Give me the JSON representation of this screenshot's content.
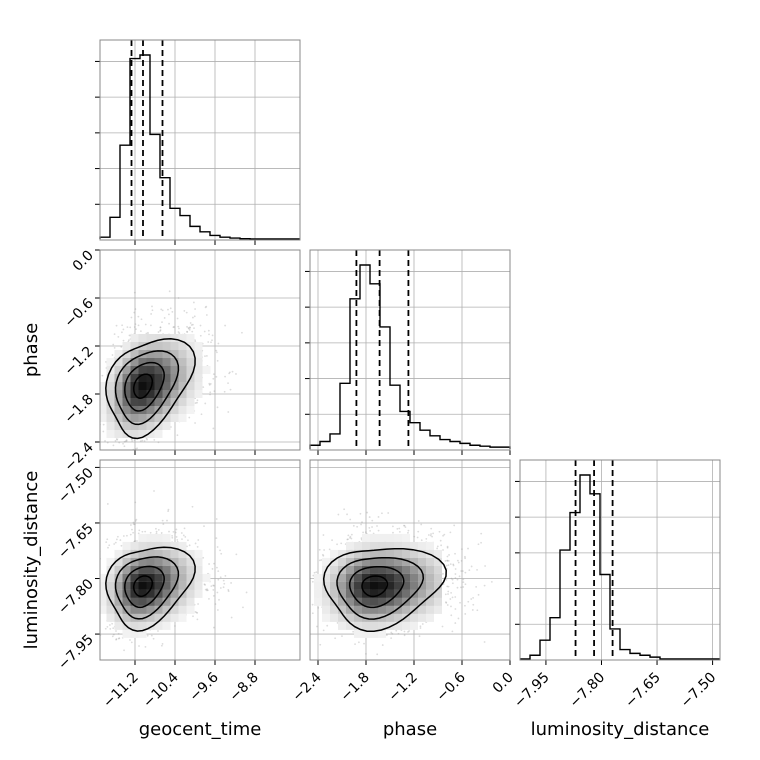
{
  "chart_data": {
    "type": "corner",
    "grid": true,
    "parameters": [
      {
        "name": "geocent_time",
        "xlabel": "geocent_time",
        "range": [
          -11.9,
          -7.9
        ],
        "ticks": [
          -11.2,
          -10.4,
          -9.6,
          -8.8
        ],
        "tick_labels": [
          "−11.2",
          "−10.4",
          "−9.6",
          "−8.8"
        ],
        "quantiles": [
          -11.27,
          -11.04,
          -10.65
        ],
        "histogram": {
          "bin_edges": [
            -11.9,
            -11.7,
            -11.5,
            -11.3,
            -11.1,
            -10.9,
            -10.7,
            -10.5,
            -10.3,
            -10.1,
            -9.9,
            -9.7,
            -9.5,
            -9.3,
            -9.1,
            -8.9,
            -8.7,
            -8.5,
            -8.3,
            -8.1,
            -7.9
          ],
          "counts": [
            0.01,
            0.12,
            0.52,
            1.0,
            1.02,
            0.58,
            0.34,
            0.17,
            0.13,
            0.07,
            0.04,
            0.02,
            0.01,
            0.005,
            0.002,
            0,
            0,
            0,
            0,
            0
          ]
        }
      },
      {
        "name": "phase",
        "xlabel": "phase",
        "ylabel": "phase",
        "range": [
          -2.5,
          0.0
        ],
        "ticks": [
          -2.4,
          -1.8,
          -1.2,
          -0.6,
          0.0
        ],
        "tick_labels": [
          "−2.4",
          "−1.8",
          "−1.2",
          "−0.6",
          "0.0"
        ],
        "quantiles": [
          -1.92,
          -1.63,
          -1.27
        ],
        "histogram": {
          "bin_edges": [
            -2.5,
            -2.375,
            -2.25,
            -2.125,
            -2.0,
            -1.875,
            -1.75,
            -1.625,
            -1.5,
            -1.375,
            -1.25,
            -1.125,
            -1.0,
            -0.875,
            -0.75,
            -0.625,
            -0.5,
            -0.375,
            -0.25,
            -0.125,
            0.0
          ],
          "counts": [
            0.02,
            0.04,
            0.08,
            0.35,
            0.8,
            0.98,
            0.88,
            0.65,
            0.34,
            0.2,
            0.14,
            0.1,
            0.07,
            0.05,
            0.04,
            0.03,
            0.02,
            0.015,
            0.01,
            0.01
          ]
        }
      },
      {
        "name": "luminosity_distance",
        "xlabel": "luminosity_distance",
        "ylabel": "luminosity_distance",
        "range": [
          -8.02,
          -7.48
        ],
        "ticks": [
          -7.95,
          -7.8,
          -7.65,
          -7.5
        ],
        "tick_labels": [
          "−7.95",
          "−7.80",
          "−7.65",
          "−7.50"
        ],
        "quantiles": [
          -7.87,
          -7.82,
          -7.77
        ],
        "histogram": {
          "bin_edges": [
            -8.02,
            -7.993,
            -7.966,
            -7.939,
            -7.912,
            -7.885,
            -7.858,
            -7.831,
            -7.804,
            -7.777,
            -7.75,
            -7.723,
            -7.696,
            -7.669,
            -7.642,
            -7.615,
            -7.588,
            -7.561,
            -7.534,
            -7.507,
            -7.48
          ],
          "counts": [
            0.0,
            0.02,
            0.1,
            0.22,
            0.58,
            0.78,
            0.98,
            0.88,
            0.45,
            0.16,
            0.05,
            0.03,
            0.02,
            0.01,
            0.0,
            0.0,
            0.0,
            0.0,
            0.0,
            0.0
          ]
        }
      }
    ],
    "pairs": [
      {
        "x": "geocent_time",
        "y": "phase",
        "mean": [
          -11.05,
          -1.7
        ],
        "sd": [
          0.35,
          0.3
        ],
        "corr": 0.3,
        "contour_levels_sigma": [
          0.5,
          1.0,
          1.5,
          2.0
        ]
      },
      {
        "x": "geocent_time",
        "y": "luminosity_distance",
        "mean": [
          -11.05,
          -7.82
        ],
        "sd": [
          0.35,
          0.055
        ],
        "corr": 0.2,
        "contour_levels_sigma": [
          0.5,
          1.0,
          1.5,
          2.0
        ]
      },
      {
        "x": "phase",
        "y": "luminosity_distance",
        "mean": [
          -1.7,
          -7.82
        ],
        "sd": [
          0.3,
          0.055
        ],
        "corr": 0.1,
        "contour_levels_sigma": [
          0.5,
          1.0,
          1.5,
          2.0
        ]
      }
    ],
    "colors": {
      "line": "#000000",
      "scatter": "#9a9a9a",
      "grid": "#b0b0b0",
      "frame": "#888888"
    }
  }
}
